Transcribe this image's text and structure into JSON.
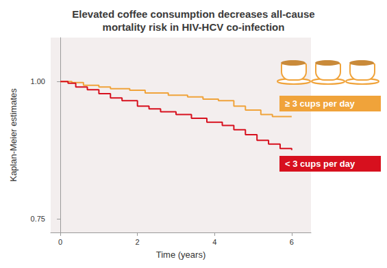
{
  "chart_data": {
    "type": "line",
    "title": "Elevated coffee consumption decreases all-cause\nmortality risk in HIV-HCV co-infection",
    "x_label": "Time (years)",
    "y_label": "Kaplan-Meier estimates",
    "xlim": [
      -0.25,
      6.5
    ],
    "xticks": [
      0,
      2,
      4,
      6
    ],
    "ylim": [
      0.725,
      1.08
    ],
    "yticks": [
      0.75,
      {
        "value": 1,
        "label": "1.00"
      }
    ],
    "grid": false,
    "line_style": "step",
    "series": [
      {
        "name": "≥ 3 cups per day",
        "color": "#f0a33a",
        "x": [
          0,
          0.3,
          0.6,
          1.0,
          1.3,
          1.8,
          2.2,
          2.8,
          3.3,
          3.7,
          4.1,
          4.5,
          4.8,
          5.2,
          5.5,
          6
        ],
        "values": [
          1,
          0.998,
          0.993,
          0.99,
          0.987,
          0.984,
          0.979,
          0.975,
          0.972,
          0.968,
          0.965,
          0.955,
          0.948,
          0.94,
          0.936,
          0.936
        ]
      },
      {
        "name": "< 3 cups per day",
        "color": "#d7101e",
        "x": [
          0,
          0.2,
          0.4,
          0.7,
          1.0,
          1.3,
          1.6,
          2.0,
          2.3,
          2.6,
          3.0,
          3.4,
          3.8,
          4.2,
          4.5,
          4.8,
          5.1,
          5.4,
          5.7,
          6
        ],
        "values": [
          1,
          0.997,
          0.99,
          0.985,
          0.978,
          0.97,
          0.965,
          0.955,
          0.95,
          0.945,
          0.94,
          0.933,
          0.926,
          0.92,
          0.912,
          0.903,
          0.893,
          0.886,
          0.878,
          0.875
        ]
      }
    ]
  }
}
